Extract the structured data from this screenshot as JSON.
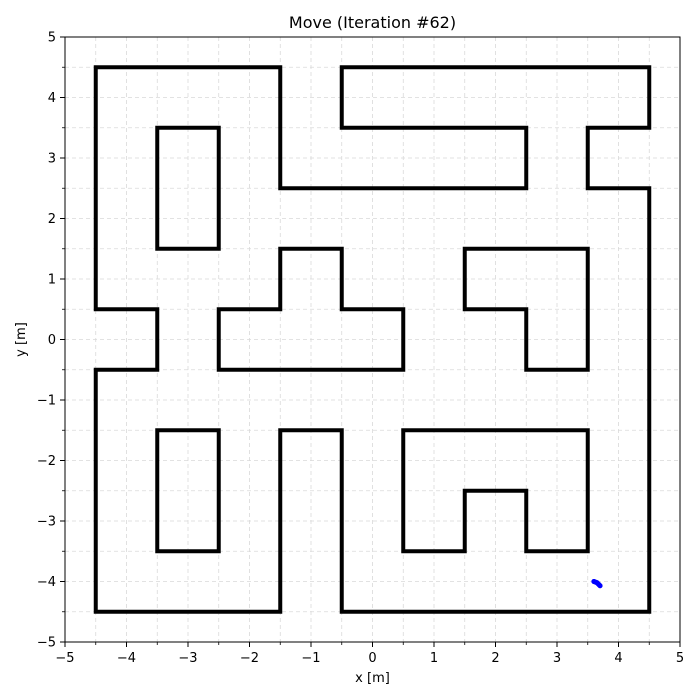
{
  "chart_data": {
    "type": "line",
    "title": "Move (Iteration #62)",
    "xlabel": "x [m]",
    "ylabel": "y [m]",
    "xlim": [
      -5,
      5
    ],
    "ylim": [
      -5,
      5
    ],
    "xticks": [
      -5,
      -4,
      -3,
      -2,
      -1,
      0,
      1,
      2,
      3,
      4,
      5
    ],
    "yticks": [
      -5,
      -4,
      -3,
      -2,
      -1,
      0,
      1,
      2,
      3,
      4,
      5
    ],
    "xtick_labels": [
      "−5",
      "−4",
      "−3",
      "−2",
      "−1",
      "0",
      "1",
      "2",
      "3",
      "4",
      "5"
    ],
    "ytick_labels": [
      "−5",
      "−4",
      "−3",
      "−2",
      "−1",
      "0",
      "1",
      "2",
      "3",
      "4",
      "5"
    ],
    "grid": true,
    "wall_color": "#000000",
    "robot_color": "#0000ff",
    "walls": [
      {
        "name": "outer-left-wall",
        "points": [
          [
            -1.5,
            4.5
          ],
          [
            -4.5,
            4.5
          ],
          [
            -4.5,
            0.5
          ],
          [
            -3.5,
            0.5
          ],
          [
            -3.5,
            -0.5
          ],
          [
            -4.5,
            -0.5
          ],
          [
            -4.5,
            -4.5
          ],
          [
            -1.5,
            -4.5
          ],
          [
            -1.5,
            -1.5
          ],
          [
            -0.5,
            -1.5
          ],
          [
            -0.5,
            -4.5
          ],
          [
            4.5,
            -4.5
          ],
          [
            4.5,
            2.5
          ],
          [
            3.5,
            2.5
          ],
          [
            3.5,
            3.5
          ],
          [
            4.5,
            3.5
          ],
          [
            4.5,
            4.5
          ],
          [
            -0.5,
            4.5
          ],
          [
            -0.5,
            3.5
          ],
          [
            2.5,
            3.5
          ],
          [
            2.5,
            2.5
          ],
          [
            -1.5,
            2.5
          ],
          [
            -1.5,
            4.5
          ]
        ]
      },
      {
        "name": "upper-left-block",
        "points": [
          [
            -3.5,
            3.5
          ],
          [
            -2.5,
            3.5
          ],
          [
            -2.5,
            1.5
          ],
          [
            -3.5,
            1.5
          ],
          [
            -3.5,
            3.5
          ]
        ]
      },
      {
        "name": "center-t-block",
        "points": [
          [
            -2.5,
            -0.5
          ],
          [
            0.5,
            -0.5
          ],
          [
            0.5,
            0.5
          ],
          [
            -0.5,
            0.5
          ],
          [
            -0.5,
            1.5
          ],
          [
            -1.5,
            1.5
          ],
          [
            -1.5,
            0.5
          ],
          [
            -2.5,
            0.5
          ],
          [
            -2.5,
            -0.5
          ]
        ]
      },
      {
        "name": "right-hook-block",
        "points": [
          [
            1.5,
            1.5
          ],
          [
            3.5,
            1.5
          ],
          [
            3.5,
            -0.5
          ],
          [
            2.5,
            -0.5
          ],
          [
            2.5,
            0.5
          ],
          [
            1.5,
            0.5
          ],
          [
            1.5,
            1.5
          ]
        ]
      },
      {
        "name": "lower-left-block",
        "points": [
          [
            -3.5,
            -1.5
          ],
          [
            -2.5,
            -1.5
          ],
          [
            -2.5,
            -3.5
          ],
          [
            -3.5,
            -3.5
          ],
          [
            -3.5,
            -1.5
          ]
        ]
      },
      {
        "name": "lower-right-block",
        "points": [
          [
            0.5,
            -1.5
          ],
          [
            3.5,
            -1.5
          ],
          [
            3.5,
            -3.5
          ],
          [
            2.5,
            -3.5
          ],
          [
            2.5,
            -2.5
          ],
          [
            1.5,
            -2.5
          ],
          [
            1.5,
            -3.5
          ],
          [
            0.5,
            -3.5
          ],
          [
            0.5,
            -1.5
          ]
        ]
      }
    ],
    "robot_trail": [
      [
        3.6,
        -4.0
      ],
      [
        3.65,
        -4.02
      ],
      [
        3.68,
        -4.05
      ],
      [
        3.7,
        -4.07
      ]
    ]
  }
}
